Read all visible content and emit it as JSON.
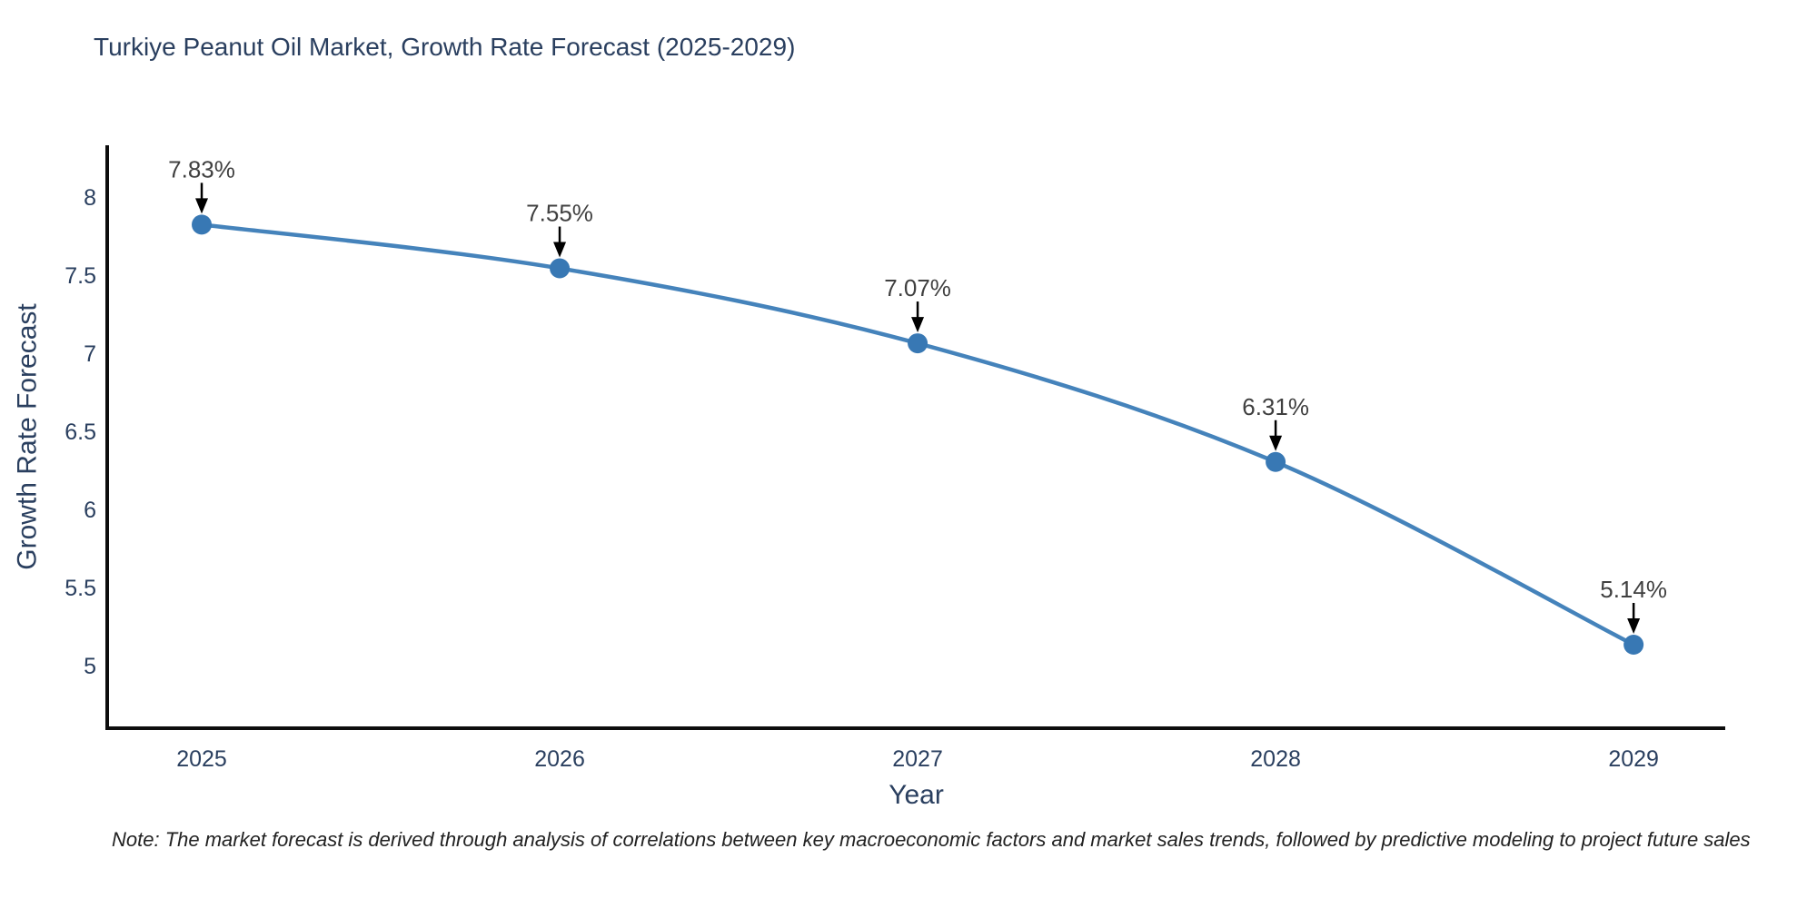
{
  "title": "Turkiye Peanut Oil Market, Growth Rate Forecast (2025-2029)",
  "note": "Note: The market forecast is derived through analysis of correlations between key macroeconomic factors and market sales trends, followed by predictive modeling to project future sales",
  "chart_data": {
    "type": "line",
    "title": "Turkiye Peanut Oil Market, Growth Rate Forecast (2025-2029)",
    "x": [
      2025,
      2026,
      2027,
      2028,
      2029
    ],
    "values": [
      7.83,
      7.55,
      7.07,
      6.31,
      5.14
    ],
    "point_labels": [
      "7.83%",
      "7.55%",
      "7.07%",
      "6.31%",
      "5.14%"
    ],
    "xlabel": "Year",
    "ylabel": "Growth Rate Forecast",
    "x_ticks": [
      "2025",
      "2026",
      "2027",
      "2028",
      "2029"
    ],
    "y_ticks": [
      8,
      7.5,
      7,
      6.5,
      6,
      5.5,
      5
    ],
    "xlim": [
      2024.736,
      2029.256
    ],
    "ylim": [
      4.605,
      8.338
    ],
    "grid": false,
    "legend": "none",
    "line_shape": "spline",
    "colors": {
      "line": "#4583bb",
      "marker": "#3878b4",
      "axis": "#0d0d0d",
      "tick_text": "#2a3f5f",
      "axis_title_text": "#2a3f5f",
      "annotation_text": "#404040",
      "annotation_arrow": "#000000",
      "background": "#ffffff"
    }
  }
}
